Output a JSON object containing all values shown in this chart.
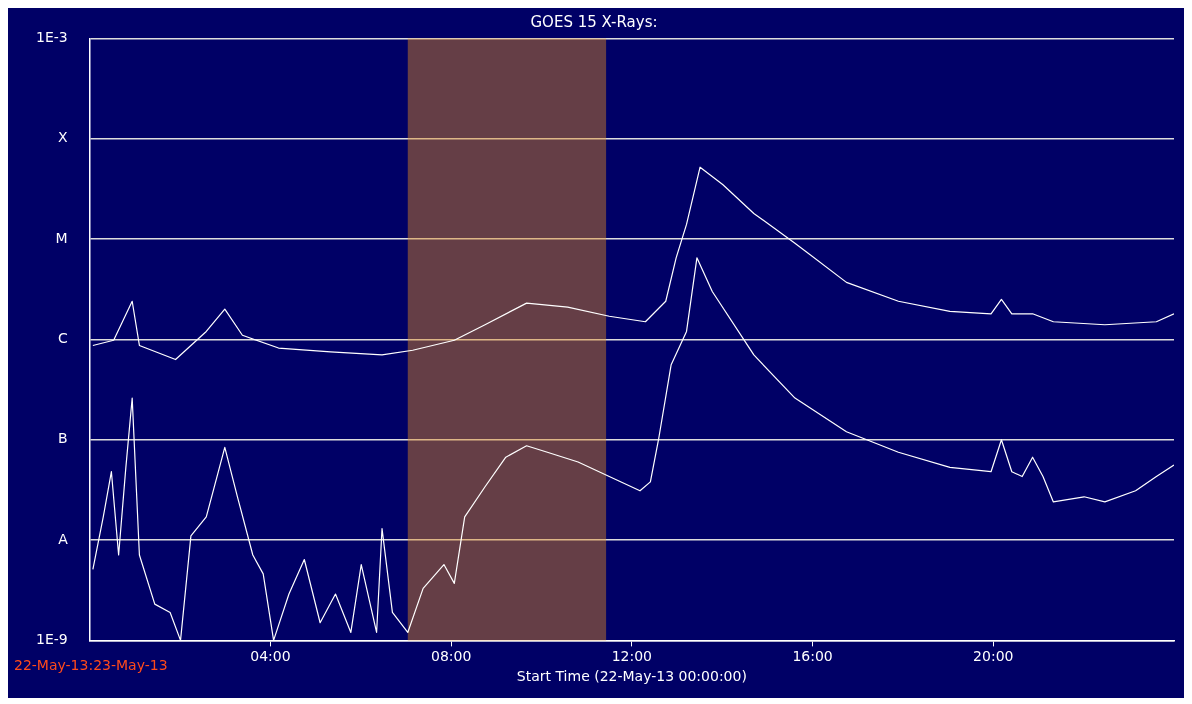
{
  "chart_data": {
    "type": "line",
    "title": "GOES 15 X-Rays:",
    "xlabel": "Start Time (22-May-13 00:00:00)",
    "annotations": [
      "22-May-13:23-May-13"
    ],
    "log": "y",
    "grid": "y",
    "legend": false,
    "marker": "none",
    "line_style": "solid",
    "xlim": [
      0,
      24
    ],
    "xticks": [
      {
        "value": 4,
        "label": "04:00"
      },
      {
        "value": 8,
        "label": "08:00"
      },
      {
        "value": 12,
        "label": "12:00"
      },
      {
        "value": 16,
        "label": "16:00"
      },
      {
        "value": 20,
        "label": "20:00"
      }
    ],
    "ylim": [
      1e-09,
      0.001
    ],
    "yticks": [
      {
        "value": 1e-09,
        "label": "1E-9"
      },
      {
        "value": 1e-08,
        "label": "A"
      },
      {
        "value": 1e-07,
        "label": "B"
      },
      {
        "value": 1e-06,
        "label": "C"
      },
      {
        "value": 1e-05,
        "label": "M"
      },
      {
        "value": 0.0001,
        "label": "X"
      },
      {
        "value": 0.001,
        "label": "1E-3"
      }
    ],
    "bands": [
      {
        "axis": "x",
        "from": 7.04,
        "to": 11.43,
        "color": "#e08a1e"
      }
    ],
    "series": [
      {
        "color": "#ffffff",
        "x": [
          0.07,
          0.53,
          0.94,
          1.1,
          1.9,
          2.58,
          2.99,
          3.38,
          4.18,
          5.33,
          6.47,
          7.15,
          8.07,
          8.75,
          9.67,
          10.58,
          11.5,
          12.3,
          12.75,
          12.98,
          13.21,
          13.51,
          14.01,
          14.7,
          15.61,
          16.75,
          17.9,
          19.04,
          19.95,
          20.18,
          20.41,
          20.87,
          21.33,
          22.47,
          23.61,
          24.0
        ],
        "values": [
          8.7e-07,
          9.8e-07,
          2.4e-06,
          8.7e-07,
          6.3e-07,
          1.2e-06,
          2e-06,
          1.1e-06,
          8.2e-07,
          7.5e-07,
          7e-07,
          7.8e-07,
          9.8e-07,
          1.4e-06,
          2.3e-06,
          2.1e-06,
          1.7e-06,
          1.5e-06,
          2.4e-06,
          6.5e-06,
          1.4e-05,
          5.2e-05,
          3.5e-05,
          1.8e-05,
          9.1e-06,
          3.7e-06,
          2.4e-06,
          1.9e-06,
          1.8e-06,
          2.5e-06,
          1.8e-06,
          1.8e-06,
          1.5e-06,
          1.4e-06,
          1.5e-06,
          1.8e-06
        ]
      },
      {
        "color": "#ffffff",
        "x": [
          0.07,
          0.3,
          0.48,
          0.64,
          0.8,
          0.94,
          1.1,
          1.44,
          1.78,
          2.01,
          2.24,
          2.58,
          2.99,
          3.27,
          3.61,
          3.84,
          4.07,
          4.41,
          4.75,
          5.1,
          5.44,
          5.78,
          6.01,
          6.35,
          6.47,
          6.7,
          7.04,
          7.38,
          7.84,
          8.07,
          8.3,
          8.75,
          9.21,
          9.67,
          10.13,
          10.81,
          11.5,
          12.18,
          12.41,
          12.59,
          12.87,
          13.21,
          13.44,
          13.78,
          14.7,
          15.61,
          16.75,
          17.9,
          19.04,
          19.95,
          20.18,
          20.41,
          20.64,
          20.87,
          21.1,
          21.33,
          22.01,
          22.47,
          23.15,
          23.61,
          24.0
        ],
        "values": [
          5.1e-09,
          1.7e-08,
          4.8e-08,
          7.1e-09,
          5.3e-08,
          2.6e-07,
          7.1e-09,
          2.3e-09,
          1.9e-09,
          1e-09,
          1.1e-08,
          1.7e-08,
          8.4e-08,
          2.7e-08,
          7.1e-09,
          4.6e-09,
          1e-09,
          2.9e-09,
          6.4e-09,
          1.5e-09,
          2.9e-09,
          1.2e-09,
          5.7e-09,
          1.2e-09,
          1.3e-08,
          1.9e-09,
          1.2e-09,
          3.3e-09,
          5.7e-09,
          3.7e-09,
          1.7e-08,
          3.4e-08,
          6.7e-08,
          8.7e-08,
          7.5e-08,
          6e-08,
          4.3e-08,
          3.1e-08,
          3.8e-08,
          1e-07,
          5.6e-07,
          1.2e-06,
          6.5e-06,
          3e-06,
          7e-07,
          2.6e-07,
          1.2e-07,
          7.5e-08,
          5.3e-08,
          4.8e-08,
          1e-07,
          4.8e-08,
          4.3e-08,
          6.7e-08,
          4.3e-08,
          2.4e-08,
          2.7e-08,
          2.4e-08,
          3.1e-08,
          4.3e-08,
          5.6e-08
        ]
      }
    ]
  }
}
